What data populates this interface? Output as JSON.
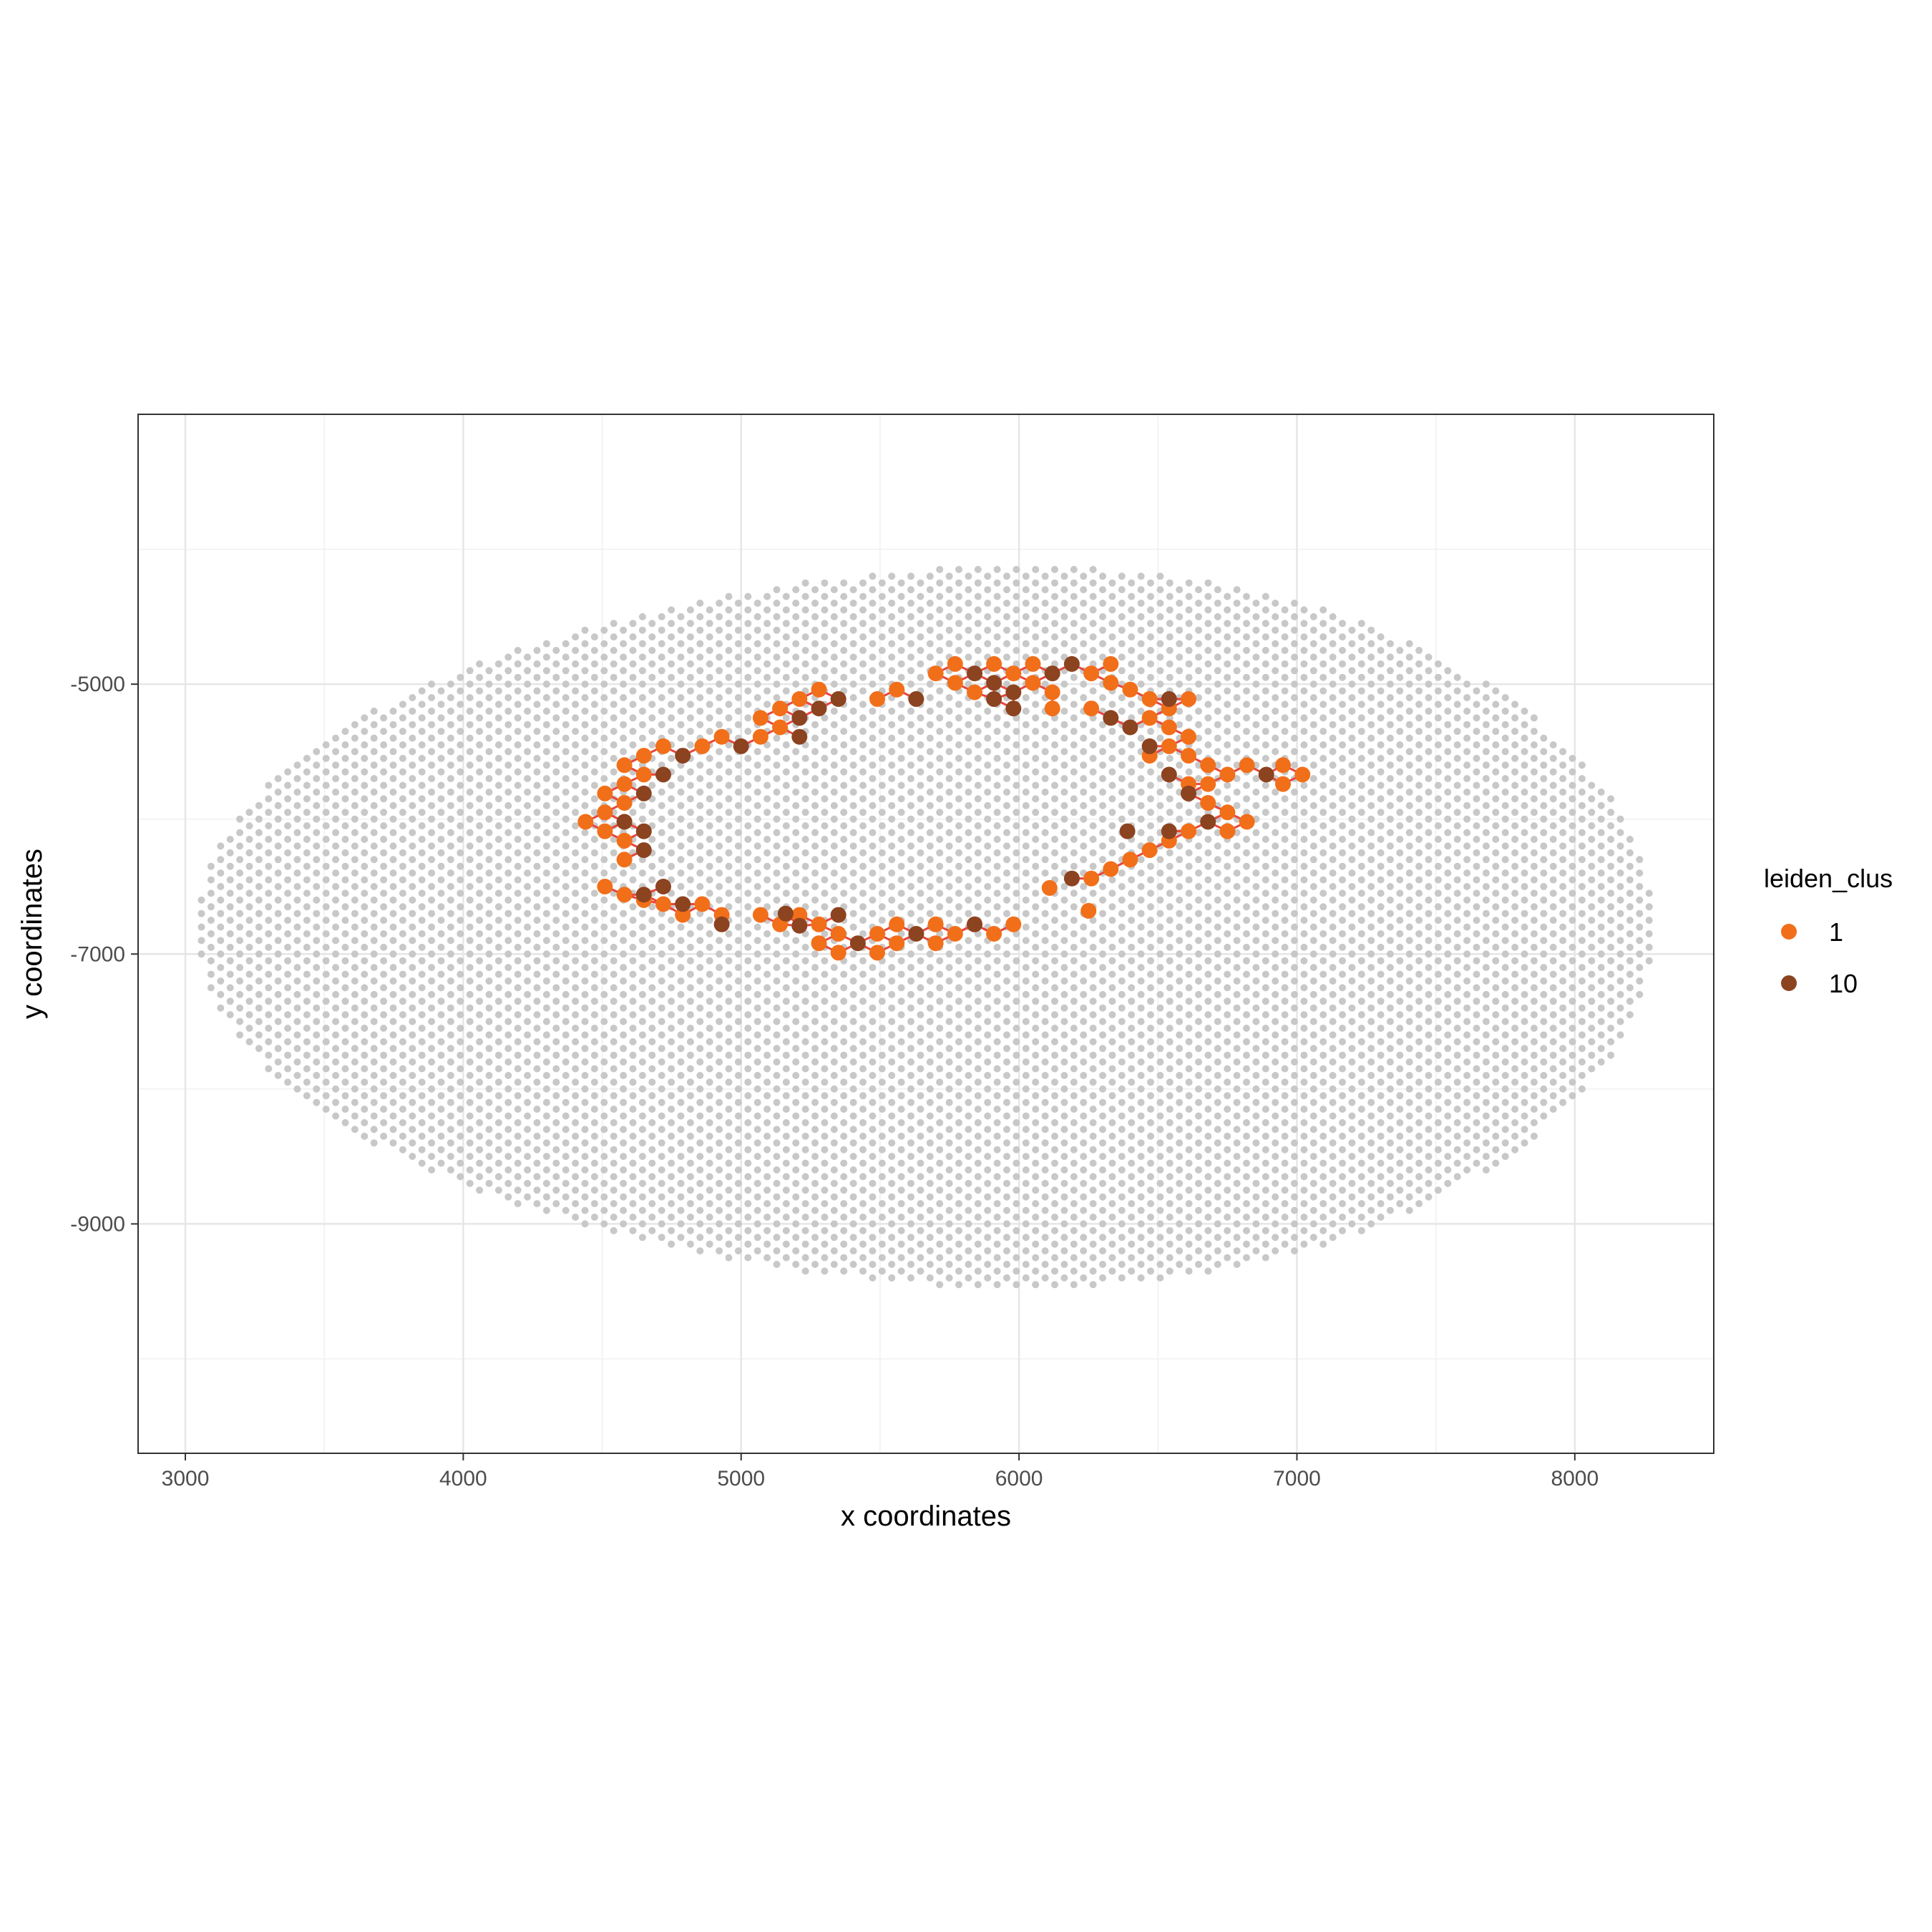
{
  "chart_data": {
    "type": "scatter",
    "xlabel": "x coordinates",
    "ylabel": "y coordinates",
    "xlim": [
      2830,
      8500
    ],
    "ylim": [
      -10700,
      -3000
    ],
    "x_ticks": [
      3000,
      4000,
      5000,
      6000,
      7000,
      8000
    ],
    "y_ticks": [
      -5000,
      -7000,
      -9000
    ],
    "x_tick_labels": [
      "3000",
      "4000",
      "5000",
      "6000",
      "7000",
      "8000"
    ],
    "y_tick_labels": [
      "-5000",
      "-7000",
      "-9000"
    ],
    "grid": true,
    "legend": {
      "title": "leiden_clus",
      "placement": "right",
      "entries": [
        {
          "label": "1",
          "color": "#f26f1a"
        },
        {
          "label": "10",
          "color": "#8c4320"
        }
      ]
    },
    "background_points": {
      "color": "#c8c8c8",
      "description_rule": "hexagonal spot grid inside ellipse",
      "x_step": 69,
      "y_step": 100,
      "center": [
        5680,
        -6800
      ],
      "x_radius": 2620,
      "y_radius": 2650
    },
    "series": [
      {
        "name": "1",
        "color": "#f26f1a",
        "points": [
          [
            5770,
            -4850
          ],
          [
            5910,
            -4850
          ],
          [
            6050,
            -4850
          ],
          [
            6330,
            -4850
          ],
          [
            5700,
            -4920
          ],
          [
            5980,
            -4920
          ],
          [
            6260,
            -4920
          ],
          [
            5770,
            -4990
          ],
          [
            6050,
            -4990
          ],
          [
            6330,
            -4990
          ],
          [
            5280,
            -5040
          ],
          [
            5560,
            -5040
          ],
          [
            5840,
            -5060
          ],
          [
            6120,
            -5060
          ],
          [
            6400,
            -5040
          ],
          [
            5210,
            -5110
          ],
          [
            5490,
            -5110
          ],
          [
            6470,
            -5110
          ],
          [
            6610,
            -5110
          ],
          [
            5140,
            -5180
          ],
          [
            6120,
            -5180
          ],
          [
            6260,
            -5180
          ],
          [
            6540,
            -5180
          ],
          [
            5070,
            -5250
          ],
          [
            6470,
            -5250
          ],
          [
            5140,
            -5320
          ],
          [
            6540,
            -5320
          ],
          [
            5070,
            -5390
          ],
          [
            4930,
            -5390
          ],
          [
            6610,
            -5390
          ],
          [
            4720,
            -5460
          ],
          [
            4860,
            -5460
          ],
          [
            6540,
            -5460
          ],
          [
            4650,
            -5530
          ],
          [
            6470,
            -5530
          ],
          [
            6610,
            -5530
          ],
          [
            4580,
            -5600
          ],
          [
            6680,
            -5600
          ],
          [
            4650,
            -5670
          ],
          [
            6750,
            -5670
          ],
          [
            6820,
            -5600
          ],
          [
            6950,
            -5600
          ],
          [
            7020,
            -5670
          ],
          [
            4580,
            -5740
          ],
          [
            6610,
            -5740
          ],
          [
            6680,
            -5740
          ],
          [
            6950,
            -5740
          ],
          [
            4510,
            -5810
          ],
          [
            4580,
            -5880
          ],
          [
            6680,
            -5880
          ],
          [
            4510,
            -5950
          ],
          [
            6750,
            -5950
          ],
          [
            4440,
            -6020
          ],
          [
            4580,
            -6020
          ],
          [
            6820,
            -6020
          ],
          [
            4510,
            -6090
          ],
          [
            6610,
            -6090
          ],
          [
            6750,
            -6090
          ],
          [
            4580,
            -6160
          ],
          [
            6540,
            -6160
          ],
          [
            6470,
            -6230
          ],
          [
            4580,
            -6300
          ],
          [
            6400,
            -6300
          ],
          [
            6330,
            -6370
          ],
          [
            6260,
            -6440
          ],
          [
            6110,
            -6510
          ],
          [
            4510,
            -6500
          ],
          [
            4580,
            -6560
          ],
          [
            4650,
            -6600
          ],
          [
            4720,
            -6630
          ],
          [
            4860,
            -6630
          ],
          [
            4790,
            -6710
          ],
          [
            4930,
            -6710
          ],
          [
            5070,
            -6710
          ],
          [
            5210,
            -6710
          ],
          [
            5280,
            -6780
          ],
          [
            5140,
            -6780
          ],
          [
            5560,
            -6780
          ],
          [
            5700,
            -6780
          ],
          [
            5840,
            -6780
          ],
          [
            5980,
            -6780
          ],
          [
            5350,
            -6850
          ],
          [
            5490,
            -6850
          ],
          [
            5770,
            -6850
          ],
          [
            5910,
            -6850
          ],
          [
            5280,
            -6920
          ],
          [
            5560,
            -6920
          ],
          [
            5700,
            -6920
          ],
          [
            5350,
            -6990
          ],
          [
            5490,
            -6990
          ],
          [
            6250,
            -6680
          ]
        ]
      },
      {
        "name": "10",
        "color": "#8c4320",
        "points": [
          [
            6190,
            -4850
          ],
          [
            5840,
            -4920
          ],
          [
            6120,
            -4920
          ],
          [
            5910,
            -4990
          ],
          [
            5980,
            -5060
          ],
          [
            5350,
            -5110
          ],
          [
            5630,
            -5110
          ],
          [
            5910,
            -5110
          ],
          [
            5280,
            -5180
          ],
          [
            5980,
            -5180
          ],
          [
            6540,
            -5110
          ],
          [
            5210,
            -5250
          ],
          [
            6330,
            -5250
          ],
          [
            6400,
            -5320
          ],
          [
            5210,
            -5390
          ],
          [
            5000,
            -5460
          ],
          [
            4790,
            -5530
          ],
          [
            6470,
            -5460
          ],
          [
            4720,
            -5670
          ],
          [
            6540,
            -5670
          ],
          [
            4650,
            -5810
          ],
          [
            6610,
            -5810
          ],
          [
            4580,
            -6020
          ],
          [
            6680,
            -6020
          ],
          [
            6890,
            -5670
          ],
          [
            4650,
            -6090
          ],
          [
            6540,
            -6090
          ],
          [
            4650,
            -6230
          ],
          [
            4720,
            -6500
          ],
          [
            4650,
            -6560
          ],
          [
            4790,
            -6630
          ],
          [
            4930,
            -6780
          ],
          [
            5160,
            -6700
          ],
          [
            5350,
            -6710
          ],
          [
            5210,
            -6790
          ],
          [
            5420,
            -6920
          ],
          [
            5630,
            -6850
          ],
          [
            5840,
            -6780
          ],
          [
            6390,
            -6090
          ],
          [
            6190,
            -6440
          ]
        ]
      }
    ]
  }
}
